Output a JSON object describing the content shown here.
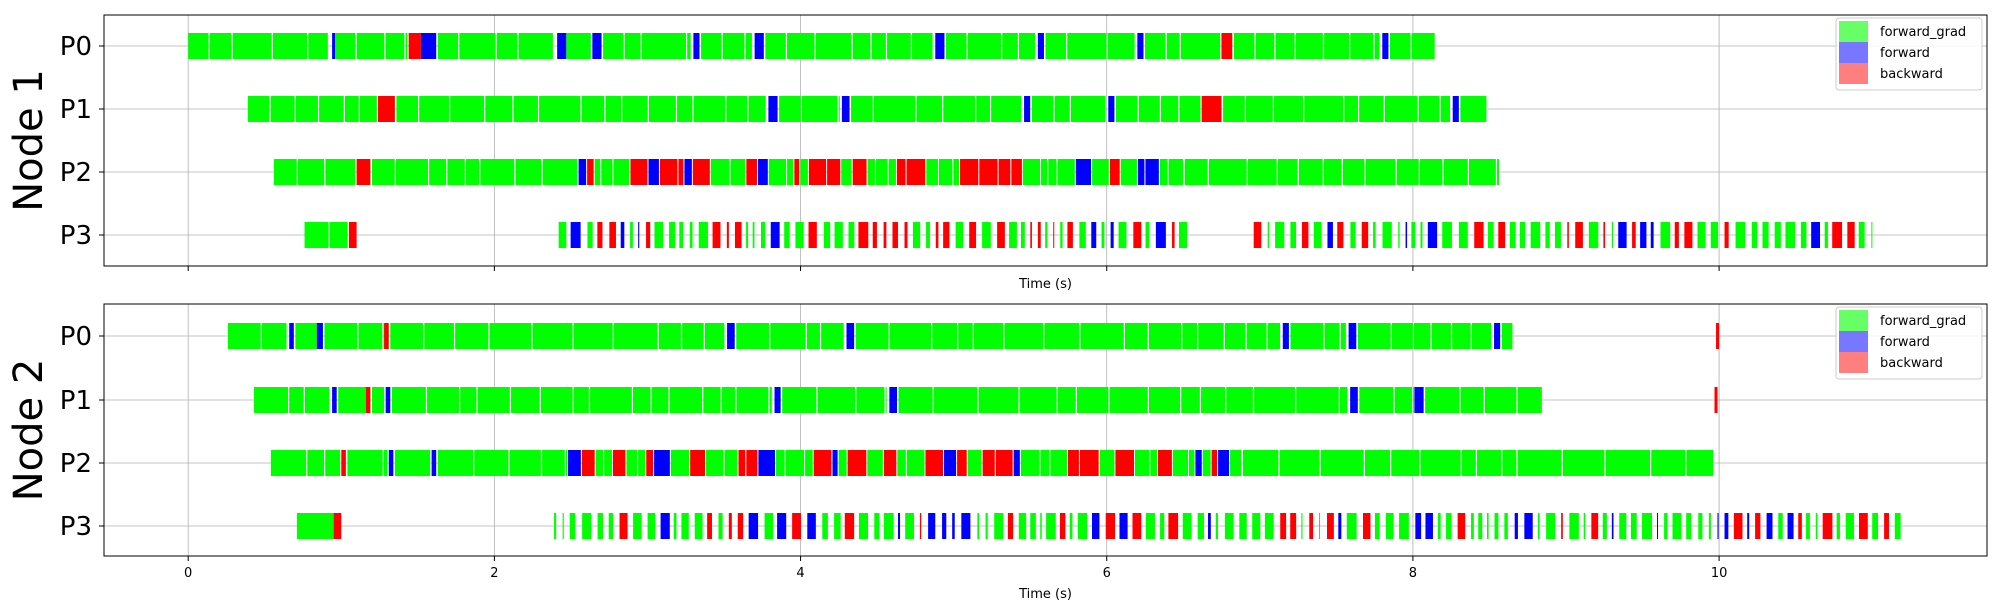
{
  "colors": {
    "forward_grad": "#00ff00",
    "forward": "#0000ff",
    "backward": "#ff0000",
    "forward_grad_legend": "#66ff66",
    "forward_legend": "#7777ff",
    "backward_legend": "#ff7f7f"
  },
  "chart_data": [
    {
      "type": "timeline",
      "title": "",
      "xlabel": "Time (s)",
      "node_label": "Node 1",
      "xlim": [
        -0.55,
        11.75
      ],
      "xticks": [
        "0",
        "2",
        "4",
        "6",
        "8",
        "10"
      ],
      "xtick_labels_visible": false,
      "ycategories": [
        "P0",
        "P1",
        "P2",
        "P3"
      ],
      "grid": true,
      "legend": {
        "position": "top-right",
        "entries": [
          "forward_grad",
          "forward",
          "backward"
        ]
      },
      "series": [
        {
          "name": "P0",
          "segments": [
            {
              "start": 0.0,
              "end": 0.92,
              "kind": "forward_grad"
            },
            {
              "start": 0.94,
              "end": 0.96,
              "kind": "forward"
            },
            {
              "start": 0.96,
              "end": 1.44,
              "kind": "forward_grad"
            },
            {
              "start": 1.44,
              "end": 1.52,
              "kind": "backward"
            },
            {
              "start": 1.52,
              "end": 1.62,
              "kind": "forward"
            },
            {
              "start": 1.63,
              "end": 2.39,
              "kind": "forward_grad"
            },
            {
              "start": 2.41,
              "end": 2.47,
              "kind": "forward"
            },
            {
              "start": 2.47,
              "end": 2.63,
              "kind": "forward_grad"
            },
            {
              "start": 2.64,
              "end": 2.7,
              "kind": "forward"
            },
            {
              "start": 2.71,
              "end": 3.29,
              "kind": "forward_grad"
            },
            {
              "start": 3.3,
              "end": 3.34,
              "kind": "forward"
            },
            {
              "start": 3.35,
              "end": 3.69,
              "kind": "forward_grad"
            },
            {
              "start": 3.7,
              "end": 3.76,
              "kind": "forward"
            },
            {
              "start": 3.77,
              "end": 4.87,
              "kind": "forward_grad"
            },
            {
              "start": 4.88,
              "end": 4.94,
              "kind": "forward"
            },
            {
              "start": 4.95,
              "end": 5.54,
              "kind": "forward_grad"
            },
            {
              "start": 5.55,
              "end": 5.59,
              "kind": "forward"
            },
            {
              "start": 5.6,
              "end": 6.19,
              "kind": "forward_grad"
            },
            {
              "start": 6.2,
              "end": 6.24,
              "kind": "forward"
            },
            {
              "start": 6.25,
              "end": 6.75,
              "kind": "forward_grad"
            },
            {
              "start": 6.75,
              "end": 6.82,
              "kind": "backward"
            },
            {
              "start": 6.83,
              "end": 7.79,
              "kind": "forward_grad"
            },
            {
              "start": 7.8,
              "end": 7.84,
              "kind": "forward"
            },
            {
              "start": 7.85,
              "end": 8.15,
              "kind": "forward_grad"
            }
          ]
        },
        {
          "name": "P1",
          "segments": [
            {
              "start": 0.39,
              "end": 1.24,
              "kind": "forward_grad"
            },
            {
              "start": 1.24,
              "end": 1.35,
              "kind": "backward"
            },
            {
              "start": 1.36,
              "end": 3.78,
              "kind": "forward_grad"
            },
            {
              "start": 3.79,
              "end": 3.85,
              "kind": "forward"
            },
            {
              "start": 3.86,
              "end": 4.26,
              "kind": "forward_grad"
            },
            {
              "start": 4.27,
              "end": 4.32,
              "kind": "forward"
            },
            {
              "start": 4.33,
              "end": 5.45,
              "kind": "forward_grad"
            },
            {
              "start": 5.46,
              "end": 5.5,
              "kind": "forward"
            },
            {
              "start": 5.51,
              "end": 6.0,
              "kind": "forward_grad"
            },
            {
              "start": 6.01,
              "end": 6.05,
              "kind": "forward"
            },
            {
              "start": 6.06,
              "end": 6.62,
              "kind": "forward_grad"
            },
            {
              "start": 6.62,
              "end": 6.75,
              "kind": "backward"
            },
            {
              "start": 6.76,
              "end": 8.25,
              "kind": "forward_grad"
            },
            {
              "start": 8.26,
              "end": 8.3,
              "kind": "forward"
            },
            {
              "start": 8.31,
              "end": 8.48,
              "kind": "forward_grad"
            }
          ]
        },
        {
          "name": "P2",
          "segments": [
            {
              "start": 0.56,
              "end": 1.1,
              "kind": "forward_grad"
            },
            {
              "start": 1.1,
              "end": 1.19,
              "kind": "backward"
            },
            {
              "start": 1.2,
              "end": 2.55,
              "kind": "forward_grad"
            },
            {
              "start": 2.55,
              "end": 6.5,
              "kind": "mixed"
            },
            {
              "start": 6.51,
              "end": 8.57,
              "kind": "forward_grad"
            }
          ]
        },
        {
          "name": "P3",
          "segments": [
            {
              "start": 0.76,
              "end": 1.05,
              "kind": "forward_grad"
            },
            {
              "start": 1.05,
              "end": 1.1,
              "kind": "backward"
            },
            {
              "start": 2.42,
              "end": 6.56,
              "kind": "dense"
            },
            {
              "start": 6.96,
              "end": 11.0,
              "kind": "dense"
            }
          ]
        }
      ]
    },
    {
      "type": "timeline",
      "title": "",
      "xlabel": "Time (s)",
      "node_label": "Node 2",
      "xlim": [
        -0.55,
        11.75
      ],
      "xticks": [
        "0",
        "2",
        "4",
        "6",
        "8",
        "10"
      ],
      "xtick_labels_visible": true,
      "ycategories": [
        "P0",
        "P1",
        "P2",
        "P3"
      ],
      "grid": true,
      "legend": {
        "position": "top-right",
        "entries": [
          "forward_grad",
          "forward",
          "backward"
        ]
      },
      "series": [
        {
          "name": "P0",
          "segments": [
            {
              "start": 0.26,
              "end": 0.65,
              "kind": "forward_grad"
            },
            {
              "start": 0.66,
              "end": 0.69,
              "kind": "forward"
            },
            {
              "start": 0.7,
              "end": 0.84,
              "kind": "forward_grad"
            },
            {
              "start": 0.84,
              "end": 0.88,
              "kind": "forward"
            },
            {
              "start": 0.89,
              "end": 1.28,
              "kind": "forward_grad"
            },
            {
              "start": 1.28,
              "end": 1.31,
              "kind": "backward"
            },
            {
              "start": 1.32,
              "end": 3.51,
              "kind": "forward_grad"
            },
            {
              "start": 3.52,
              "end": 3.57,
              "kind": "forward"
            },
            {
              "start": 3.58,
              "end": 4.29,
              "kind": "forward_grad"
            },
            {
              "start": 4.3,
              "end": 4.35,
              "kind": "forward"
            },
            {
              "start": 4.36,
              "end": 7.14,
              "kind": "forward_grad"
            },
            {
              "start": 7.15,
              "end": 7.19,
              "kind": "forward"
            },
            {
              "start": 7.2,
              "end": 7.57,
              "kind": "forward_grad"
            },
            {
              "start": 7.58,
              "end": 7.63,
              "kind": "forward"
            },
            {
              "start": 7.64,
              "end": 8.52,
              "kind": "forward_grad"
            },
            {
              "start": 8.53,
              "end": 8.57,
              "kind": "forward"
            },
            {
              "start": 8.58,
              "end": 8.65,
              "kind": "forward_grad"
            },
            {
              "start": 9.98,
              "end": 10.0,
              "kind": "backward"
            }
          ]
        },
        {
          "name": "P1",
          "segments": [
            {
              "start": 0.43,
              "end": 0.93,
              "kind": "forward_grad"
            },
            {
              "start": 0.94,
              "end": 0.97,
              "kind": "forward"
            },
            {
              "start": 0.98,
              "end": 1.16,
              "kind": "forward_grad"
            },
            {
              "start": 1.16,
              "end": 1.19,
              "kind": "backward"
            },
            {
              "start": 1.2,
              "end": 1.28,
              "kind": "forward_grad"
            },
            {
              "start": 1.29,
              "end": 1.32,
              "kind": "forward"
            },
            {
              "start": 1.33,
              "end": 3.82,
              "kind": "forward_grad"
            },
            {
              "start": 3.83,
              "end": 3.87,
              "kind": "forward"
            },
            {
              "start": 3.88,
              "end": 4.57,
              "kind": "forward_grad"
            },
            {
              "start": 4.58,
              "end": 4.63,
              "kind": "forward"
            },
            {
              "start": 4.64,
              "end": 7.58,
              "kind": "forward_grad"
            },
            {
              "start": 7.59,
              "end": 7.64,
              "kind": "forward"
            },
            {
              "start": 7.65,
              "end": 8.01,
              "kind": "forward_grad"
            },
            {
              "start": 8.01,
              "end": 8.07,
              "kind": "forward"
            },
            {
              "start": 8.08,
              "end": 8.85,
              "kind": "forward_grad"
            },
            {
              "start": 9.97,
              "end": 9.99,
              "kind": "backward"
            }
          ]
        },
        {
          "name": "P2",
          "segments": [
            {
              "start": 0.54,
              "end": 1.0,
              "kind": "forward_grad"
            },
            {
              "start": 1.0,
              "end": 1.03,
              "kind": "backward"
            },
            {
              "start": 1.04,
              "end": 1.31,
              "kind": "forward_grad"
            },
            {
              "start": 1.31,
              "end": 1.34,
              "kind": "forward"
            },
            {
              "start": 1.35,
              "end": 1.58,
              "kind": "forward_grad"
            },
            {
              "start": 1.59,
              "end": 1.62,
              "kind": "forward"
            },
            {
              "start": 1.63,
              "end": 2.48,
              "kind": "forward_grad"
            },
            {
              "start": 2.48,
              "end": 6.88,
              "kind": "mixed"
            },
            {
              "start": 6.89,
              "end": 9.97,
              "kind": "forward_grad"
            }
          ]
        },
        {
          "name": "P3",
          "segments": [
            {
              "start": 0.71,
              "end": 0.95,
              "kind": "forward_grad"
            },
            {
              "start": 0.95,
              "end": 1.0,
              "kind": "backward"
            },
            {
              "start": 2.39,
              "end": 11.2,
              "kind": "dense"
            }
          ]
        }
      ]
    }
  ]
}
